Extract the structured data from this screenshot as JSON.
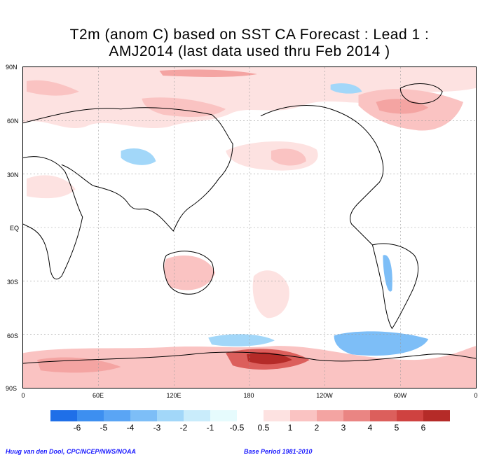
{
  "title_line1": "T2m (anom C) based on SST CA Forecast : Lead 1 :",
  "title_line2": "AMJ2014 (last data used thru Feb 2014 )",
  "lat_labels": [
    "90N",
    "60N",
    "30N",
    "EQ",
    "30S",
    "60S",
    "90S"
  ],
  "lon_labels": [
    "0",
    "60E",
    "120E",
    "180",
    "120W",
    "60W",
    "0"
  ],
  "colorbar": {
    "colors": [
      "#1f6fe8",
      "#3d8ff0",
      "#5aa5f5",
      "#7dbef7",
      "#a2d7f9",
      "#c9ecfb",
      "#e6fbfd",
      "#ffffff",
      "#fde2e1",
      "#fac3c2",
      "#f4a4a2",
      "#ea8583",
      "#dc5f5c",
      "#cf4240",
      "#b52b28"
    ],
    "labels": [
      "-6",
      "-5",
      "-4",
      "-3",
      "-2",
      "-1",
      "-0.5",
      "0.5",
      "1",
      "2",
      "3",
      "4",
      "5",
      "6"
    ]
  },
  "credit_left": "Huug van den Dool, CPC/NCEP/NWS/NOAA",
  "credit_right": "Base Period 1981-2010"
}
